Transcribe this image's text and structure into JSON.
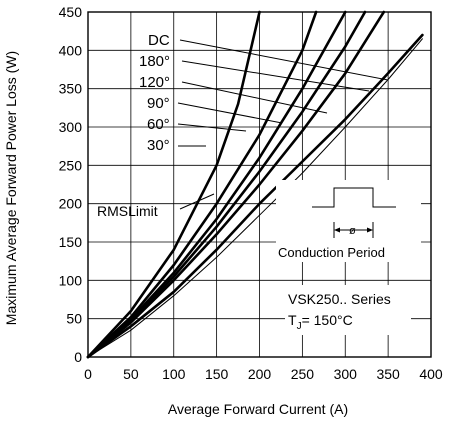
{
  "chart_data": {
    "type": "line",
    "title": "",
    "xlabel": "Average Forward Current (A)",
    "ylabel": "Maximum Average Forward Power Loss (W)",
    "xlim": [
      0,
      400
    ],
    "ylim": [
      0,
      450
    ],
    "xticks": [
      "0",
      "50",
      "100",
      "150",
      "200",
      "250",
      "300",
      "350",
      "400"
    ],
    "yticks": [
      "0",
      "50",
      "100",
      "150",
      "200",
      "250",
      "300",
      "350",
      "400",
      "450"
    ],
    "grid": true,
    "series": [
      {
        "name": "DC",
        "x": [
          0,
          50,
          100,
          150,
          200,
          250,
          300,
          350,
          390
        ],
        "y": [
          0,
          40,
          85,
          140,
          200,
          255,
          310,
          370,
          420
        ]
      },
      {
        "name": "180°",
        "x": [
          0,
          50,
          100,
          150,
          200,
          250,
          300,
          345
        ],
        "y": [
          0,
          45,
          100,
          160,
          225,
          295,
          370,
          450
        ]
      },
      {
        "name": "120°",
        "x": [
          0,
          50,
          100,
          150,
          200,
          250,
          300,
          323
        ],
        "y": [
          0,
          47,
          105,
          170,
          242,
          320,
          405,
          450
        ]
      },
      {
        "name": "90°",
        "x": [
          0,
          50,
          100,
          150,
          200,
          250,
          300
        ],
        "y": [
          0,
          49,
          110,
          180,
          260,
          350,
          450
        ]
      },
      {
        "name": "60°",
        "x": [
          0,
          50,
          100,
          150,
          200,
          250,
          266
        ],
        "y": [
          0,
          52,
          120,
          200,
          290,
          400,
          450
        ]
      },
      {
        "name": "30°",
        "x": [
          0,
          50,
          100,
          150,
          175,
          200
        ],
        "y": [
          0,
          60,
          140,
          250,
          330,
          450
        ]
      },
      {
        "name": "RMS Limit",
        "x": [
          0,
          50,
          100,
          150,
          200,
          250,
          300,
          350,
          390
        ],
        "y": [
          0,
          35,
          80,
          130,
          185,
          240,
          300,
          362,
          415
        ]
      }
    ],
    "annotations": {
      "series_labels": [
        "DC",
        "180°",
        "120°",
        "90°",
        "60°",
        "30°"
      ],
      "rms_label": "RMSLimit",
      "inset_symbol": "ø",
      "inset_label": "Conduction Period",
      "device_series": "VSK250.. Series",
      "junction_temp": {
        "base": "T",
        "sub": "J",
        "rest": "= 150°C"
      }
    },
    "legend": "labels with leader lines"
  }
}
